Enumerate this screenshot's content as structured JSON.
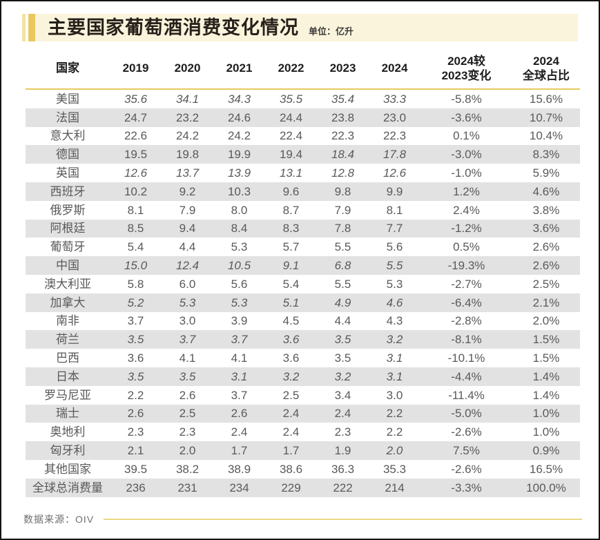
{
  "title": "主要国家葡萄酒消费变化情况",
  "unit_label": "单位：亿升",
  "source_label": "数据来源：OIV",
  "colors": {
    "accent_gold": "#e9c95f",
    "accent_gold_light": "#f3e3a2",
    "gold_rule": "#e4cb5e",
    "title_band_bg": "#fbf4dc",
    "row_alt_bg": "#e2e2e2",
    "body_text": "#58595b",
    "header_text": "#1d1d1f"
  },
  "chart_data": {
    "type": "table",
    "title": "主要国家葡萄酒消费变化情况",
    "unit": "亿升",
    "source": "OIV",
    "columns": [
      "国家",
      "2019",
      "2020",
      "2021",
      "2022",
      "2023",
      "2024",
      "2024较\n2023变化",
      "2024\n全球占比"
    ],
    "year_columns": [
      2019,
      2020,
      2021,
      2022,
      2023,
      2024
    ],
    "note": "italics flag per year value marks figures shown in italic (estimates) in the source graphic",
    "rows": [
      {
        "country": "美国",
        "values": [
          "35.6",
          "34.1",
          "34.3",
          "35.5",
          "35.4",
          "33.3"
        ],
        "italics": [
          1,
          1,
          1,
          1,
          1,
          1
        ],
        "change": "-5.8%",
        "share": "15.6%"
      },
      {
        "country": "法国",
        "values": [
          "24.7",
          "23.2",
          "24.6",
          "24.4",
          "23.8",
          "23.0"
        ],
        "italics": [
          0,
          0,
          0,
          0,
          0,
          0
        ],
        "change": "-3.6%",
        "share": "10.7%"
      },
      {
        "country": "意大利",
        "values": [
          "22.6",
          "24.2",
          "24.2",
          "22.4",
          "22.3",
          "22.3"
        ],
        "italics": [
          0,
          0,
          0,
          0,
          0,
          0
        ],
        "change": "0.1%",
        "share": "10.4%"
      },
      {
        "country": "德国",
        "values": [
          "19.5",
          "19.8",
          "19.9",
          "19.4",
          "18.4",
          "17.8"
        ],
        "italics": [
          0,
          0,
          0,
          0,
          1,
          1
        ],
        "change": "-3.0%",
        "share": "8.3%"
      },
      {
        "country": "英国",
        "values": [
          "12.6",
          "13.7",
          "13.9",
          "13.1",
          "12.8",
          "12.6"
        ],
        "italics": [
          1,
          1,
          1,
          1,
          1,
          1
        ],
        "change": "-1.0%",
        "share": "5.9%"
      },
      {
        "country": "西班牙",
        "values": [
          "10.2",
          "9.2",
          "10.3",
          "9.6",
          "9.8",
          "9.9"
        ],
        "italics": [
          0,
          0,
          0,
          0,
          0,
          0
        ],
        "change": "1.2%",
        "share": "4.6%"
      },
      {
        "country": "俄罗斯",
        "values": [
          "8.1",
          "7.9",
          "8.0",
          "8.7",
          "7.9",
          "8.1"
        ],
        "italics": [
          0,
          0,
          0,
          0,
          0,
          0
        ],
        "change": "2.4%",
        "share": "3.8%"
      },
      {
        "country": "阿根廷",
        "values": [
          "8.5",
          "9.4",
          "8.4",
          "8.3",
          "7.8",
          "7.7"
        ],
        "italics": [
          0,
          0,
          0,
          0,
          0,
          0
        ],
        "change": "-1.2%",
        "share": "3.6%"
      },
      {
        "country": "葡萄牙",
        "values": [
          "5.4",
          "4.4",
          "5.3",
          "5.7",
          "5.5",
          "5.6"
        ],
        "italics": [
          0,
          0,
          0,
          0,
          0,
          0
        ],
        "change": "0.5%",
        "share": "2.6%"
      },
      {
        "country": "中国",
        "values": [
          "15.0",
          "12.4",
          "10.5",
          "9.1",
          "6.8",
          "5.5"
        ],
        "italics": [
          1,
          1,
          1,
          1,
          1,
          1
        ],
        "change": "-19.3%",
        "share": "2.6%"
      },
      {
        "country": "澳大利亚",
        "values": [
          "5.8",
          "6.0",
          "5.6",
          "5.4",
          "5.5",
          "5.3"
        ],
        "italics": [
          0,
          0,
          0,
          0,
          0,
          0
        ],
        "change": "-2.7%",
        "share": "2.5%"
      },
      {
        "country": "加拿大",
        "values": [
          "5.2",
          "5.3",
          "5.3",
          "5.1",
          "4.9",
          "4.6"
        ],
        "italics": [
          1,
          1,
          1,
          1,
          1,
          1
        ],
        "change": "-6.4%",
        "share": "2.1%"
      },
      {
        "country": "南非",
        "values": [
          "3.7",
          "3.0",
          "3.9",
          "4.5",
          "4.4",
          "4.3"
        ],
        "italics": [
          0,
          0,
          0,
          0,
          0,
          0
        ],
        "change": "-2.8%",
        "share": "2.0%"
      },
      {
        "country": "荷兰",
        "values": [
          "3.5",
          "3.7",
          "3.7",
          "3.6",
          "3.5",
          "3.2"
        ],
        "italics": [
          1,
          1,
          1,
          1,
          1,
          1
        ],
        "change": "-8.1%",
        "share": "1.5%"
      },
      {
        "country": "巴西",
        "values": [
          "3.6",
          "4.1",
          "4.1",
          "3.6",
          "3.5",
          "3.1"
        ],
        "italics": [
          0,
          0,
          0,
          0,
          0,
          1
        ],
        "change": "-10.1%",
        "share": "1.5%"
      },
      {
        "country": "日本",
        "values": [
          "3.5",
          "3.5",
          "3.1",
          "3.2",
          "3.2",
          "3.1"
        ],
        "italics": [
          1,
          1,
          1,
          1,
          1,
          1
        ],
        "change": "-4.4%",
        "share": "1.4%"
      },
      {
        "country": "罗马尼亚",
        "values": [
          "2.2",
          "2.6",
          "3.7",
          "2.5",
          "3.4",
          "3.0"
        ],
        "italics": [
          0,
          0,
          0,
          0,
          0,
          0
        ],
        "change": "-11.4%",
        "share": "1.4%"
      },
      {
        "country": "瑞士",
        "values": [
          "2.6",
          "2.5",
          "2.6",
          "2.4",
          "2.4",
          "2.2"
        ],
        "italics": [
          0,
          0,
          0,
          0,
          0,
          0
        ],
        "change": "-5.0%",
        "share": "1.0%"
      },
      {
        "country": "奥地利",
        "values": [
          "2.3",
          "2.3",
          "2.4",
          "2.4",
          "2.3",
          "2.2"
        ],
        "italics": [
          0,
          0,
          0,
          0,
          0,
          0
        ],
        "change": "-2.6%",
        "share": "1.0%"
      },
      {
        "country": "匈牙利",
        "values": [
          "2.1",
          "2.0",
          "1.7",
          "1.7",
          "1.9",
          "2.0"
        ],
        "italics": [
          0,
          0,
          0,
          0,
          0,
          1
        ],
        "change": "7.5%",
        "share": "0.9%"
      },
      {
        "country": "其他国家",
        "values": [
          "39.5",
          "38.2",
          "38.9",
          "38.6",
          "36.3",
          "35.3"
        ],
        "italics": [
          0,
          0,
          0,
          0,
          0,
          0
        ],
        "change": "-2.6%",
        "share": "16.5%"
      },
      {
        "country": "全球总消费量",
        "values": [
          "236",
          "231",
          "234",
          "229",
          "222",
          "214"
        ],
        "italics": [
          0,
          0,
          0,
          0,
          0,
          0
        ],
        "change": "-3.3%",
        "share": "100.0%"
      }
    ]
  }
}
